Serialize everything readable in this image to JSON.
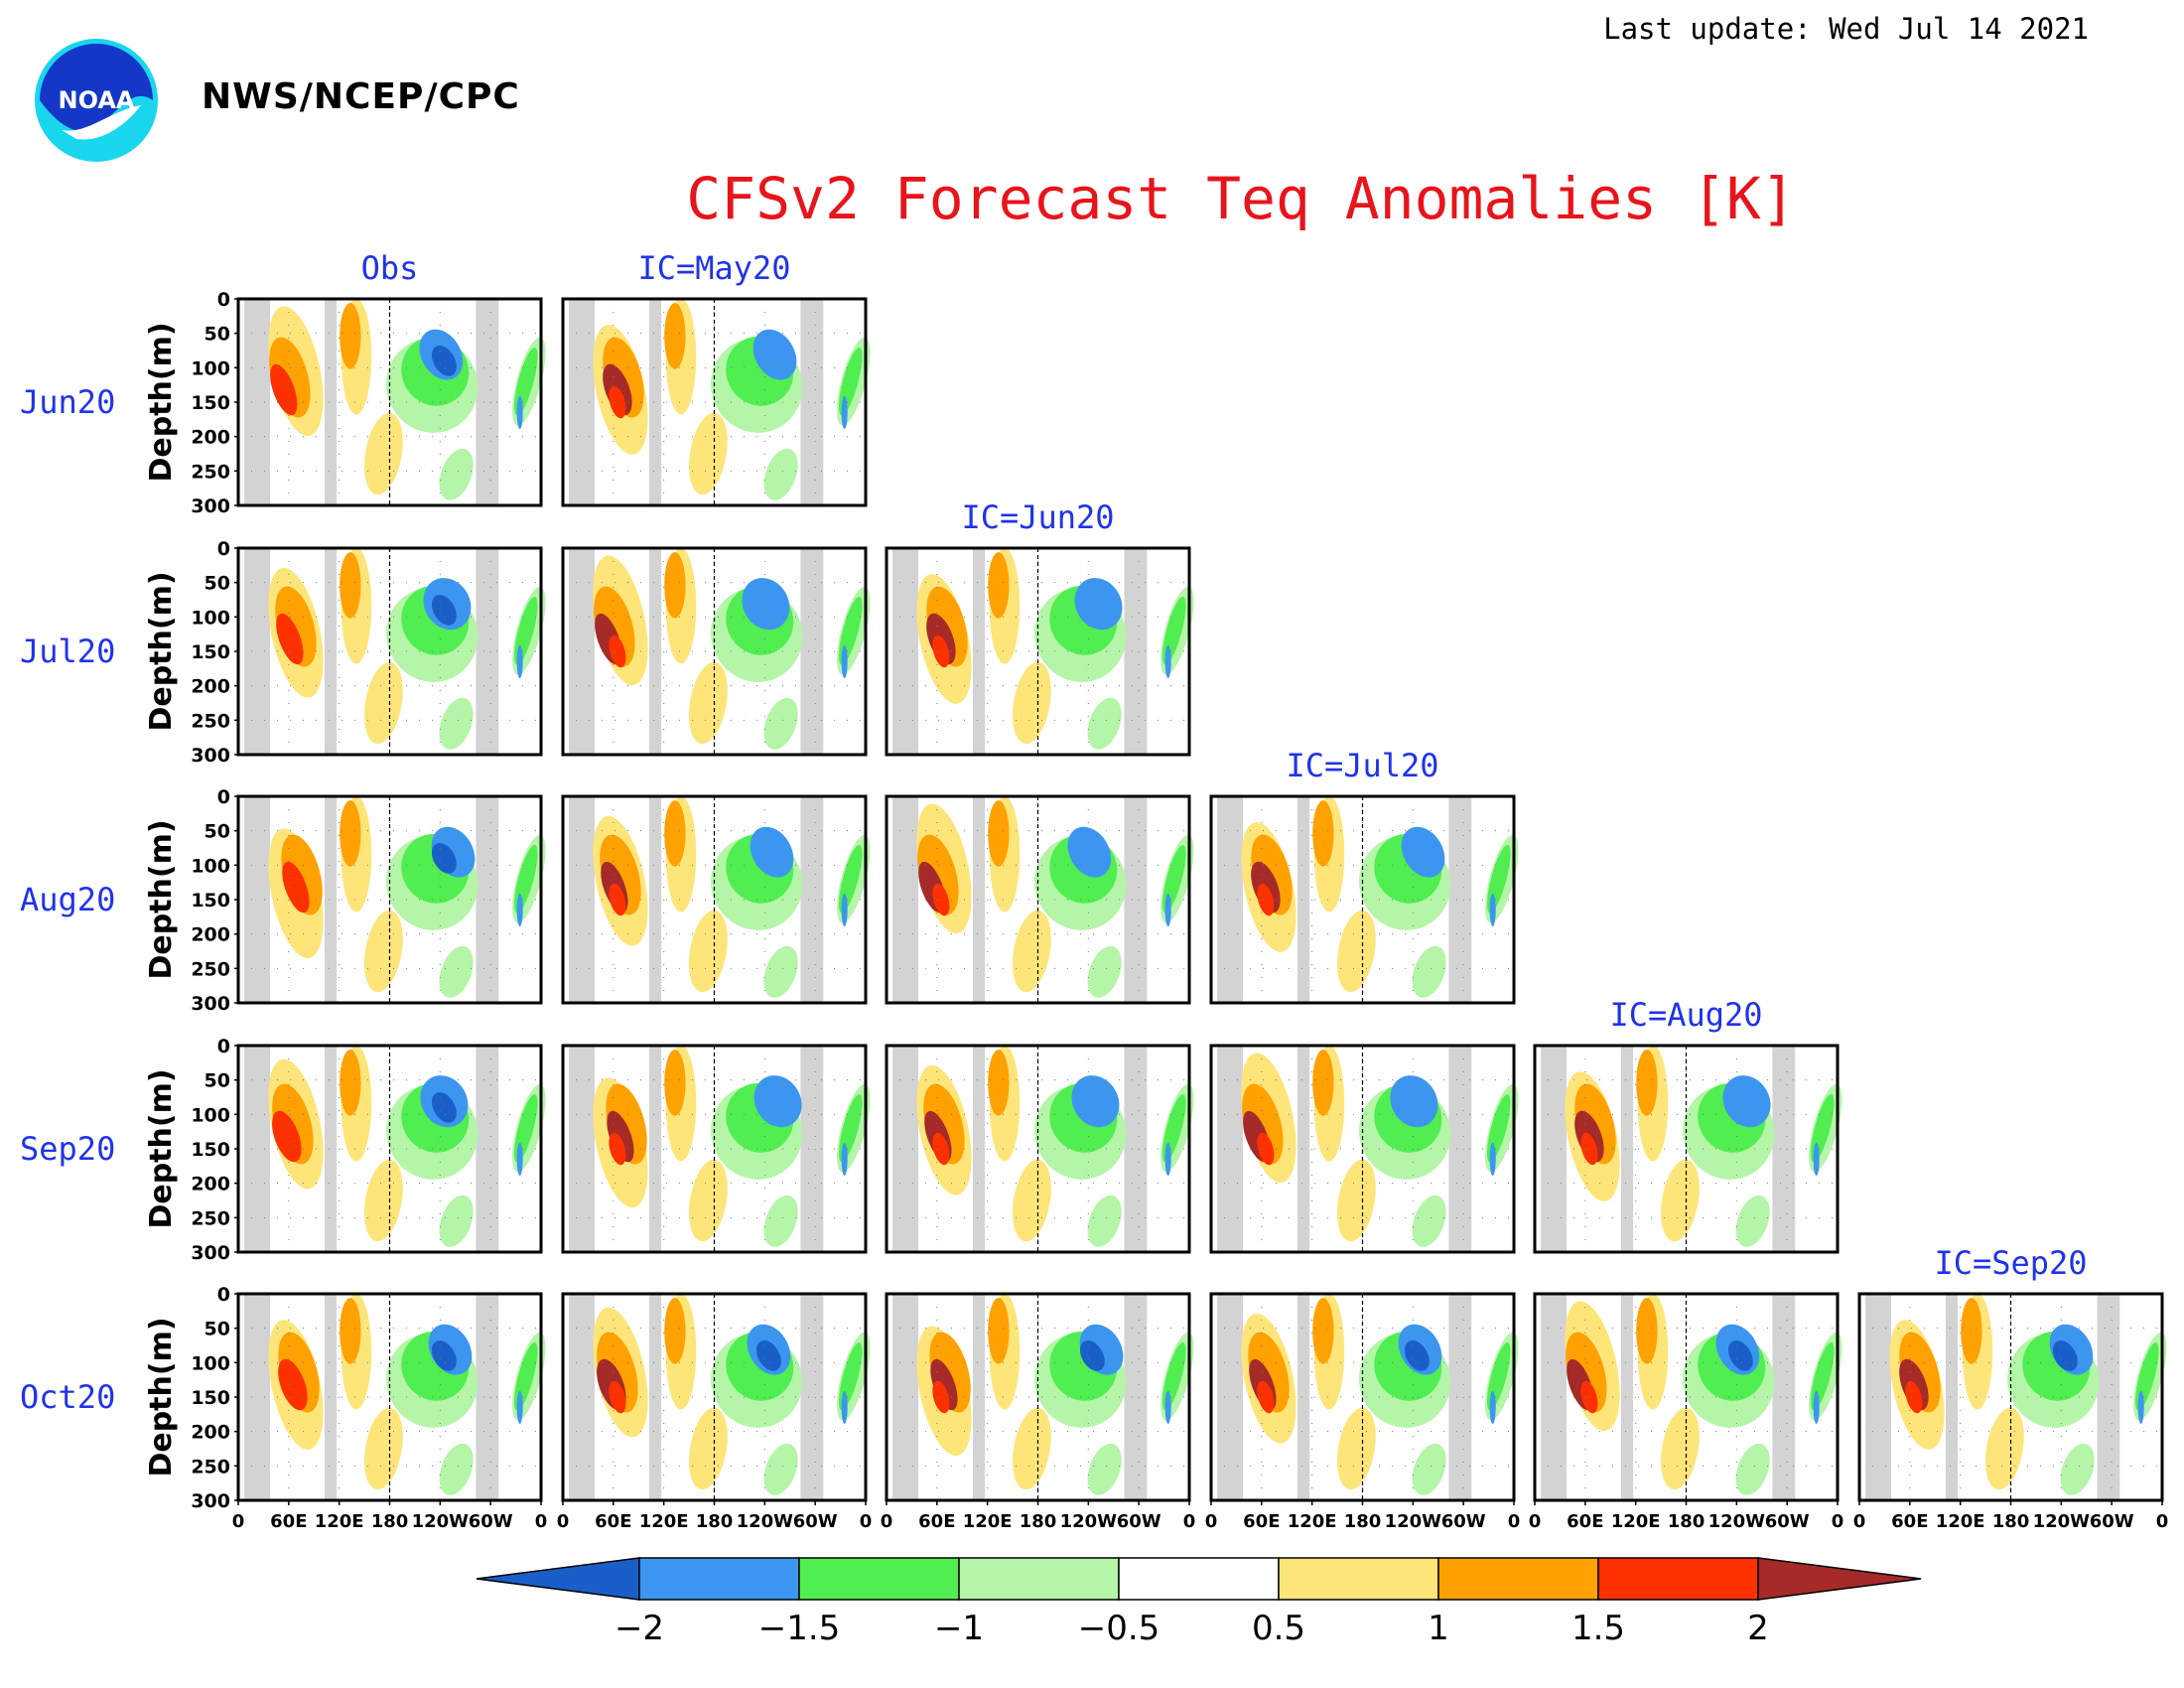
{
  "header": {
    "last_update": "Last update: Wed Jul 14 2021",
    "agency": "NWS/NCEP/CPC",
    "logo_text": "NOAA"
  },
  "chart_data": {
    "type": "heatmap",
    "title": "CFSv2 Forecast Teq Anomalies [K]",
    "ylabel": "Depth(m)",
    "y_ticks": [
      "0",
      "50",
      "100",
      "150",
      "200",
      "250",
      "300"
    ],
    "ylim": [
      300,
      0
    ],
    "x_ticks": [
      "0",
      "60E",
      "120E",
      "180",
      "120W",
      "60W",
      "0"
    ],
    "columns": [
      "Obs",
      "IC=May20",
      "IC=Jun20",
      "IC=Jul20",
      "IC=Aug20",
      "IC=Sep20"
    ],
    "rows": [
      "Jun20",
      "Jul20",
      "Aug20",
      "Sep20",
      "Oct20"
    ],
    "grid": "dotted",
    "colorbar": {
      "levels": [
        "−2",
        "−1.5",
        "−1",
        "−0.5",
        "0.5",
        "1",
        "1.5",
        "2"
      ],
      "colors": [
        "#1a5fc8",
        "#3c96f0",
        "#50ee50",
        "#b4f5a8",
        "#ffffff",
        "#fee57a",
        "#ffa100",
        "#fd3100",
        "#a52a28"
      ]
    },
    "land_color": "#d3d3d3"
  }
}
